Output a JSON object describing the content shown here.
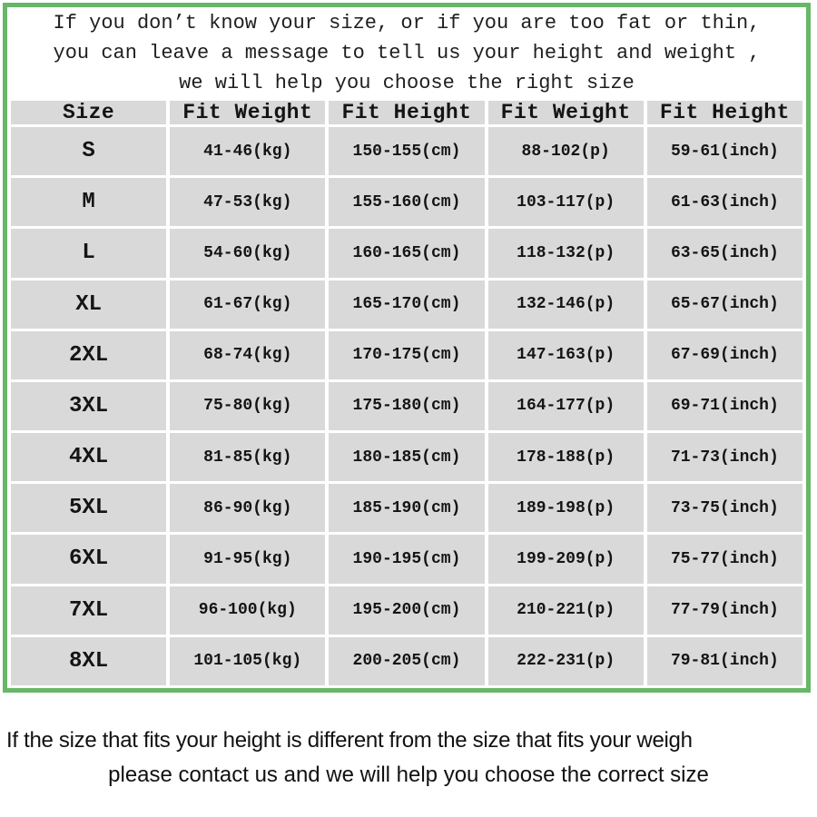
{
  "colors": {
    "frame_green": "#68b768",
    "cell_gray": "#d9d9d9",
    "background": "#ffffff",
    "text": "#1b1b1b"
  },
  "intro": {
    "lines": [
      "If you don’t know your size, or if you are too fat or thin,",
      "you can leave a message to tell us your height and weight ,",
      "we will help you choose the right size"
    ]
  },
  "chart_data": {
    "type": "table",
    "title": "Size chart",
    "columns": [
      "Size",
      "Fit Weight",
      "Fit Height",
      "Fit Weight",
      "Fit Height"
    ],
    "units": [
      "",
      "kg",
      "cm",
      "p",
      "inch"
    ],
    "rows": [
      [
        "S",
        "41-46(kg)",
        "150-155(cm)",
        "88-102(p)",
        "59-61(inch)"
      ],
      [
        "M",
        "47-53(kg)",
        "155-160(cm)",
        "103-117(p)",
        "61-63(inch)"
      ],
      [
        "L",
        "54-60(kg)",
        "160-165(cm)",
        "118-132(p)",
        "63-65(inch)"
      ],
      [
        "XL",
        "61-67(kg)",
        "165-170(cm)",
        "132-146(p)",
        "65-67(inch)"
      ],
      [
        "2XL",
        "68-74(kg)",
        "170-175(cm)",
        "147-163(p)",
        "67-69(inch)"
      ],
      [
        "3XL",
        "75-80(kg)",
        "175-180(cm)",
        "164-177(p)",
        "69-71(inch)"
      ],
      [
        "4XL",
        "81-85(kg)",
        "180-185(cm)",
        "178-188(p)",
        "71-73(inch)"
      ],
      [
        "5XL",
        "86-90(kg)",
        "185-190(cm)",
        "189-198(p)",
        "73-75(inch)"
      ],
      [
        "6XL",
        "91-95(kg)",
        "190-195(cm)",
        "199-209(p)",
        "75-77(inch)"
      ],
      [
        "7XL",
        "96-100(kg)",
        "195-200(cm)",
        "210-221(p)",
        "77-79(inch)"
      ],
      [
        "8XL",
        "101-105(kg)",
        "200-205(cm)",
        "222-231(p)",
        "79-81(inch)"
      ]
    ]
  },
  "footer": {
    "lines": [
      "If the size that fits your height is different from the size that fits your weigh",
      "please contact us and we will help you choose the correct size"
    ]
  }
}
